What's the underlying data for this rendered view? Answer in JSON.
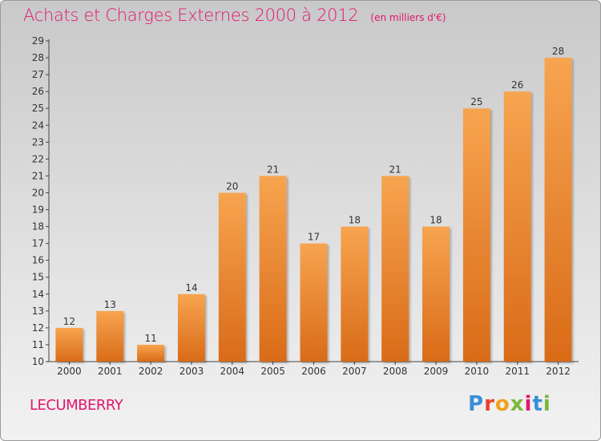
{
  "header": {
    "title": "Achats et Charges Externes 2000 à 2012",
    "unit": "(en milliers d'€)"
  },
  "footer": {
    "commune": "LECUMBERRY",
    "logo_text": "Proxiti"
  },
  "colors": {
    "title": "#e0176e",
    "bar_top": "#f7a450",
    "bar_bottom": "#d96b18"
  },
  "chart_data": {
    "type": "bar",
    "title": "Achats et Charges Externes 2000 à 2012",
    "subtitle": "(en milliers d'€)",
    "xlabel": "",
    "ylabel": "",
    "categories": [
      "2000",
      "2001",
      "2002",
      "2003",
      "2004",
      "2005",
      "2006",
      "2007",
      "2008",
      "2009",
      "2010",
      "2011",
      "2012"
    ],
    "values": [
      12,
      13,
      11,
      14,
      20,
      21,
      17,
      18,
      21,
      18,
      25,
      26,
      28
    ],
    "ylim": [
      10,
      29
    ],
    "yticks": [
      10,
      11,
      12,
      13,
      14,
      15,
      16,
      17,
      18,
      19,
      20,
      21,
      22,
      23,
      24,
      25,
      26,
      27,
      28,
      29
    ],
    "grid": false,
    "legend": "none"
  }
}
